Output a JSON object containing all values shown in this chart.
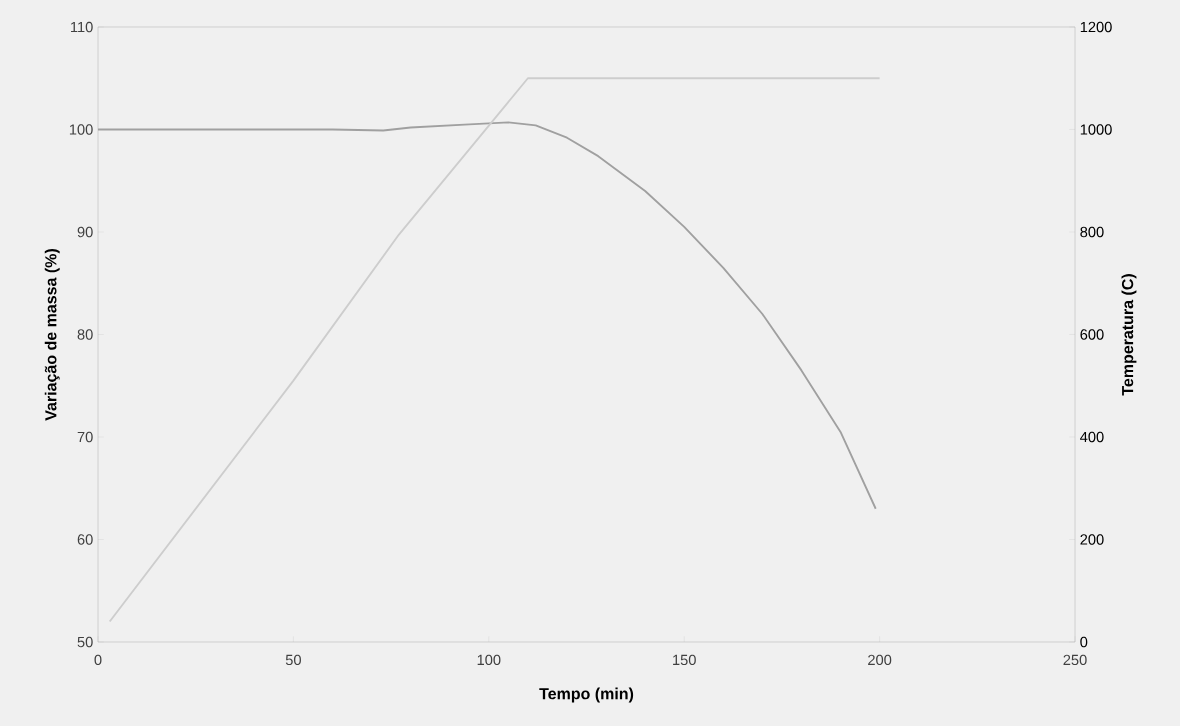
{
  "chart_data": {
    "type": "line",
    "xlabel": "Tempo (min)",
    "ylabel": "Variação de massa (%)",
    "y2label": "Temperatura (C)",
    "xlim": [
      0,
      250
    ],
    "xticks": [
      0,
      50,
      100,
      150,
      200,
      250
    ],
    "ylim": [
      50,
      110
    ],
    "yticks": [
      50,
      60,
      70,
      80,
      90,
      100,
      110
    ],
    "y2lim": [
      0,
      1200
    ],
    "y2ticks": [
      0,
      200,
      400,
      600,
      800,
      1000,
      1200
    ],
    "grid": false,
    "series": [
      {
        "color": "#a0a0a0",
        "x": [
          0,
          30,
          60,
          73,
          80,
          95,
          105,
          112,
          120,
          128,
          140,
          150,
          160,
          170,
          180,
          190,
          199
        ],
        "values": [
          100,
          100,
          100,
          99.9,
          100.2,
          100.5,
          100.7,
          100.4,
          99.2,
          97.4,
          94,
          90.5,
          86.5,
          82,
          76.5,
          70.5,
          63
        ]
      },
      {
        "color": "#cdcdcd",
        "axis": "y2",
        "x": [
          3,
          50,
          77,
          110,
          200
        ],
        "values": [
          40,
          510,
          795,
          1100,
          1100
        ]
      }
    ]
  }
}
